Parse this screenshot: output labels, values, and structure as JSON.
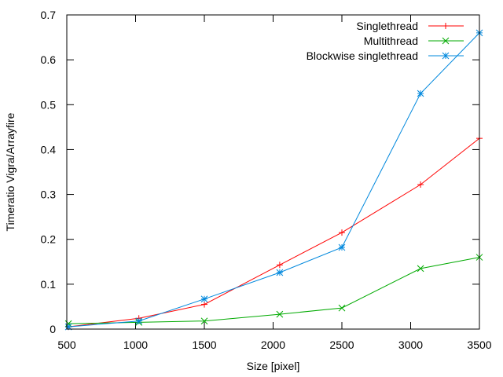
{
  "chart_data": {
    "type": "line",
    "title": "",
    "xlabel": "Size [pixel]",
    "ylabel": "Timeratio Vigra/Arrayfire",
    "xlim": [
      500,
      3500
    ],
    "ylim": [
      0,
      0.7
    ],
    "xticks": [
      500,
      1000,
      1500,
      2000,
      2500,
      3000,
      3500
    ],
    "yticks": [
      0,
      0.1,
      0.2,
      0.3,
      0.4,
      0.5,
      0.6,
      0.7
    ],
    "grid": false,
    "legend_position": "top-right",
    "series": [
      {
        "name": "Singlethread",
        "color": "#ff0000",
        "marker": "plus",
        "x": [
          512,
          1024,
          1500,
          2048,
          2500,
          3072,
          3500
        ],
        "y": [
          0.005,
          0.024,
          0.055,
          0.143,
          0.215,
          0.322,
          0.425
        ]
      },
      {
        "name": "Multithread",
        "color": "#00aa00",
        "marker": "cross",
        "x": [
          512,
          1024,
          1500,
          2048,
          2500,
          3072,
          3500
        ],
        "y": [
          0.012,
          0.015,
          0.018,
          0.033,
          0.047,
          0.135,
          0.16
        ]
      },
      {
        "name": "Blockwise singlethread",
        "color": "#0088dd",
        "marker": "star",
        "x": [
          512,
          1024,
          1500,
          2048,
          2500,
          3072,
          3500
        ],
        "y": [
          0.005,
          0.018,
          0.067,
          0.126,
          0.182,
          0.525,
          0.66
        ]
      }
    ]
  }
}
